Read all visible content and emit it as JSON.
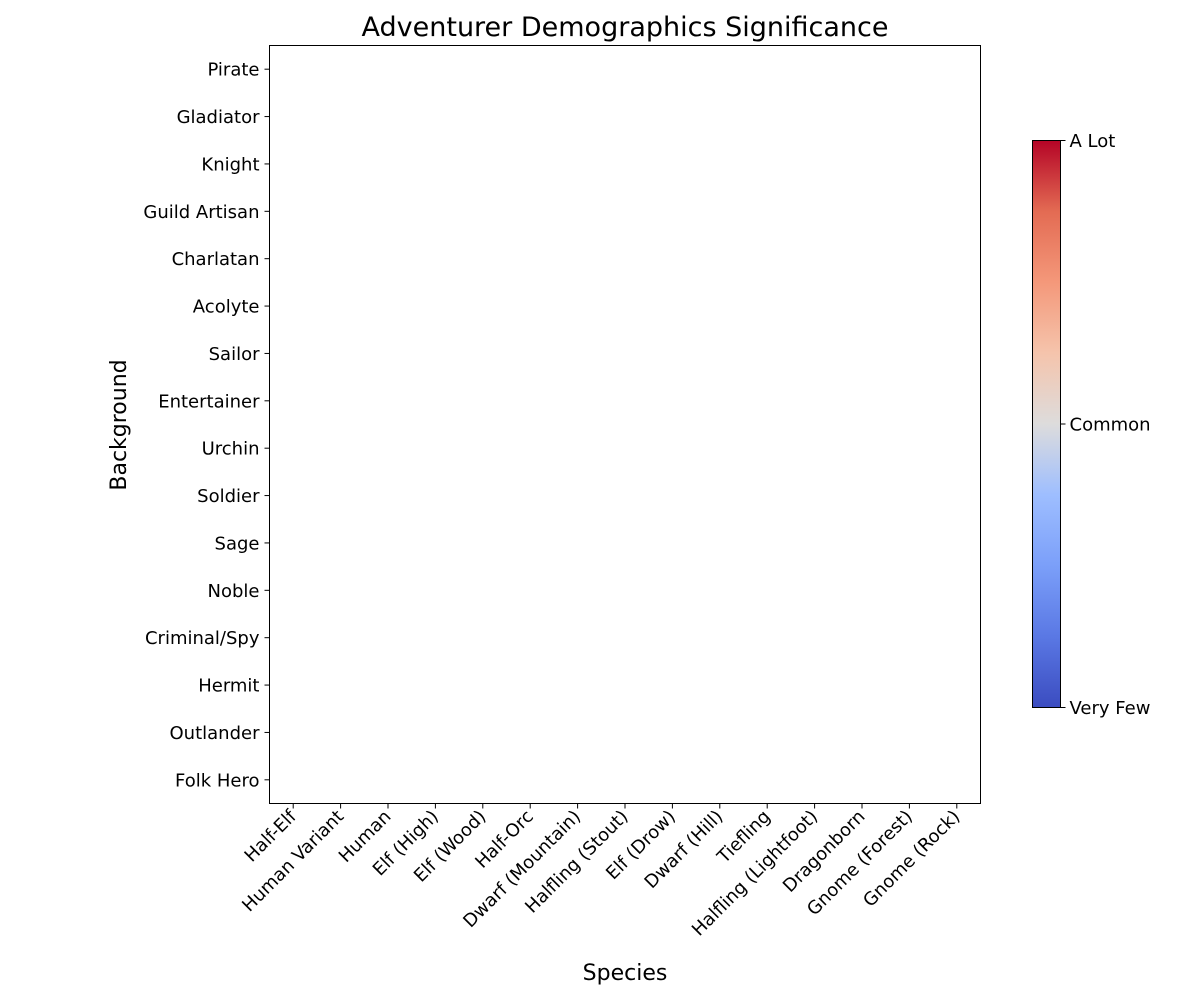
{
  "chart_data": {
    "type": "heatmap",
    "title": "Adventurer Demographics Significance",
    "xlabel": "Species",
    "ylabel": "Background",
    "x_categories": [
      "Half-Elf",
      "Human Variant",
      "Human",
      "Elf (High)",
      "Elf (Wood)",
      "Half-Orc",
      "Dwarf (Mountain)",
      "Halfling (Stout)",
      "Elf (Drow)",
      "Dwarf (Hill)",
      "Tiefling",
      "Halfling (Lightfoot)",
      "Dragonborn",
      "Gnome (Forest)",
      "Gnome (Rock)"
    ],
    "y_categories": [
      "Pirate",
      "Gladiator",
      "Knight",
      "Guild Artisan",
      "Charlatan",
      "Acolyte",
      "Sailor",
      "Entertainer",
      "Urchin",
      "Soldier",
      "Sage",
      "Noble",
      "Criminal/Spy",
      "Hermit",
      "Outlander",
      "Folk Hero"
    ],
    "values": [],
    "colorbar": {
      "colormap": "coolwarm",
      "colors": [
        "#3b4cc0",
        "#dddcdc",
        "#b40426"
      ],
      "tick_labels": [
        "Very Few",
        "Common",
        "A Lot"
      ]
    },
    "grid": false
  }
}
